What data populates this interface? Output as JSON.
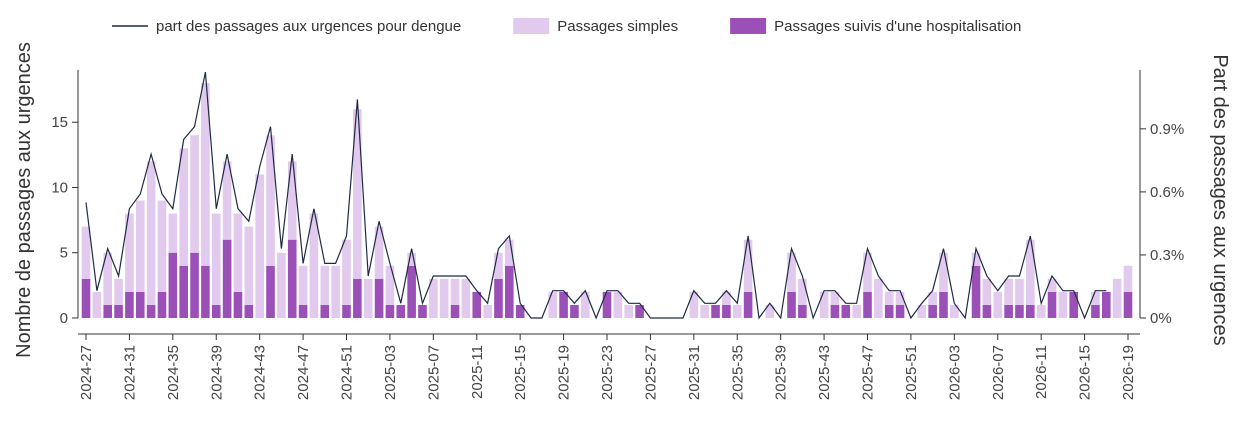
{
  "chart_data": {
    "type": "bar",
    "y_label": "Nombre de passages aux urgences",
    "y2_label": "Part des passages aux urgences",
    "categories": [
      "2024-27",
      null,
      null,
      null,
      "2024-31",
      null,
      null,
      null,
      "2024-35",
      null,
      null,
      null,
      "2024-39",
      null,
      null,
      null,
      "2024-43",
      null,
      null,
      null,
      "2024-47",
      null,
      null,
      null,
      "2024-51",
      null,
      null,
      null,
      "2025-03",
      null,
      null,
      null,
      "2025-07",
      null,
      null,
      null,
      "2025-11",
      null,
      null,
      null,
      "2025-15",
      null,
      null,
      null,
      "2025-19",
      null,
      null,
      null,
      "2025-23",
      null,
      null,
      null,
      "2025-27",
      null,
      null,
      null,
      "2025-31",
      null,
      null,
      null,
      "2025-35",
      null,
      null,
      null,
      "2025-39",
      null,
      null,
      null,
      "2025-43",
      null,
      null,
      null,
      "2025-47",
      null,
      null,
      null,
      "2025-51",
      null,
      null,
      null,
      "2026-03",
      null,
      null,
      null,
      "2026-07",
      null,
      null,
      null,
      "2026-11",
      null,
      null,
      null,
      "2026-15",
      null,
      null,
      null,
      "2026-19"
    ],
    "series": [
      {
        "name": "part des passages aux urgences pour dengue",
        "type": "line",
        "axis": "y2",
        "color": "#1f2a44",
        "values": [
          0.55,
          0.13,
          0.33,
          0.2,
          0.52,
          0.59,
          0.78,
          0.59,
          0.52,
          0.85,
          0.91,
          1.17,
          0.52,
          0.78,
          0.52,
          0.46,
          0.72,
          0.91,
          0.33,
          0.78,
          0.26,
          0.52,
          0.26,
          0.26,
          0.39,
          1.04,
          0.2,
          0.46,
          0.26,
          0.07,
          0.33,
          0.07,
          0.2,
          0.2,
          0.2,
          0.2,
          0.13,
          0.07,
          0.33,
          0.39,
          0.07,
          0,
          0,
          0.13,
          0.13,
          0.07,
          0.13,
          0,
          0.13,
          0.13,
          0.07,
          0.07,
          0,
          0,
          0,
          0,
          0.13,
          0.07,
          0.07,
          0.13,
          0.07,
          0.39,
          0,
          0.07,
          0,
          0.33,
          0.2,
          0,
          0.13,
          0.13,
          0.07,
          0.07,
          0.33,
          0.2,
          0.13,
          0.13,
          0,
          0.07,
          0.13,
          0.33,
          0.07,
          0,
          0.33,
          0.2,
          0.13,
          0.2,
          0.2,
          0.39,
          0.07,
          0.2,
          0.13,
          0.13,
          0,
          0.13,
          0.13,
          null,
          null
        ]
      },
      {
        "name": "Passages simples",
        "type": "bar",
        "color": "#e2c9ee",
        "values": [
          4,
          2,
          4,
          2,
          6,
          7,
          11,
          7,
          3,
          9,
          9,
          14,
          7,
          6,
          6,
          6,
          11,
          10,
          5,
          6,
          3,
          8,
          3,
          4,
          5,
          13,
          3,
          4,
          3,
          0,
          1,
          0,
          3,
          3,
          2,
          3,
          0,
          1,
          2,
          2,
          0,
          0,
          0,
          2,
          0,
          0,
          2,
          0,
          0,
          2,
          1,
          0,
          0,
          0,
          0,
          0,
          2,
          1,
          0,
          1,
          1,
          4,
          0,
          1,
          0,
          3,
          2,
          0,
          2,
          1,
          0,
          1,
          3,
          3,
          1,
          1,
          0,
          1,
          1,
          3,
          1,
          0,
          1,
          2,
          2,
          2,
          2,
          5,
          1,
          1,
          2,
          0,
          0,
          1,
          0,
          3,
          2
        ]
      },
      {
        "name": "Passages suivis d'une hospitalisation",
        "type": "bar",
        "color": "#9b50b8",
        "values": [
          3,
          0,
          1,
          1,
          2,
          2,
          1,
          2,
          5,
          4,
          5,
          4,
          1,
          6,
          2,
          1,
          0,
          4,
          0,
          6,
          1,
          0,
          1,
          0,
          1,
          3,
          0,
          3,
          1,
          1,
          4,
          1,
          0,
          0,
          1,
          0,
          2,
          0,
          3,
          4,
          1,
          0,
          0,
          0,
          2,
          1,
          0,
          0,
          2,
          0,
          0,
          1,
          0,
          0,
          0,
          0,
          0,
          0,
          1,
          1,
          0,
          2,
          0,
          0,
          0,
          2,
          1,
          0,
          0,
          1,
          1,
          0,
          2,
          0,
          1,
          1,
          0,
          0,
          1,
          2,
          0,
          0,
          4,
          1,
          0,
          1,
          1,
          1,
          0,
          2,
          0,
          2,
          0,
          1,
          2,
          0,
          2
        ]
      }
    ],
    "ylim": [
      0,
      19
    ],
    "yticks": [
      0,
      5,
      10,
      15
    ],
    "y2lim": [
      0,
      1.18
    ],
    "y2ticks": [
      {
        "value": 0,
        "label": "0%"
      },
      {
        "value": 0.3,
        "label": "0.3%"
      },
      {
        "value": 0.6,
        "label": "0.6%"
      },
      {
        "value": 0.9,
        "label": "0.9%"
      }
    ],
    "grid": false,
    "legend": "top"
  }
}
